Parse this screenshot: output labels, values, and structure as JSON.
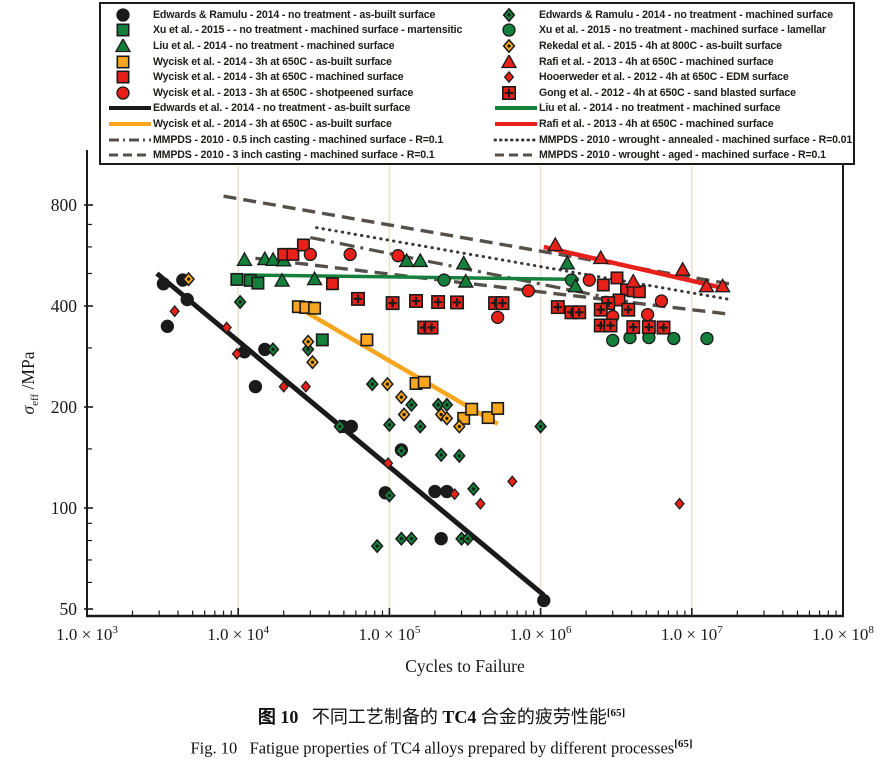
{
  "colors": {
    "black": "#1a1a1a",
    "green": "#15803C",
    "orange": "#F6A61F",
    "red": "#E7211A",
    "gray": "#56504A",
    "dot_gray": "#3a3a3a",
    "grid": "#EAE2CF",
    "axis": "#1a1a1a"
  },
  "legend": {
    "columns": [
      {
        "items": [
          {
            "marker": "circle",
            "color": "black",
            "label": "Edwards & Ramulu - 2014 - no treatment - as-built surface"
          },
          {
            "marker": "square",
            "color": "green",
            "label": "Xu et al. - 2015 - - no treatment - machined surface - martensitic"
          },
          {
            "marker": "triangle",
            "color": "green",
            "label": "Liu et al. - 2014 - no treatment - machined surface"
          },
          {
            "marker": "square",
            "color": "orange",
            "label": "Wycisk et al. - 2014 - 3h at 650C - as-built surface"
          },
          {
            "marker": "square",
            "color": "red",
            "label": "Wycisk et al. - 2014 - 3h at 650C - machined surface"
          },
          {
            "marker": "circle",
            "color": "red",
            "label": "Wycisk et al. - 2013 - 3h at 650C - shotpeened surface"
          },
          {
            "marker": "line",
            "dash": "solid",
            "color": "black",
            "label": "Edwards et al. - 2014 - no treatment - as-built surface"
          },
          {
            "marker": "line",
            "dash": "solid",
            "color": "orange",
            "label": "Wycisk  et al. -  2014 - 3h at 650C - as-built surface"
          },
          {
            "marker": "line",
            "dash": "dashdot",
            "color": "gray",
            "label": "MMPDS - 2010 - 0.5 inch casting - machined surface - R=0.1"
          },
          {
            "marker": "line",
            "dash": "dash",
            "color": "gray",
            "label": "MMPDS - 2010 - 3 inch casting - machined surface - R=0.1"
          }
        ]
      },
      {
        "items": [
          {
            "marker": "diamond",
            "color": "green",
            "label": "Edwards & Ramulu - 2014 - no treatment - machined surface"
          },
          {
            "marker": "circle",
            "color": "green",
            "label": "Xu et al. - 2015 - no treatment - machined surface - lamellar"
          },
          {
            "marker": "diamond",
            "color": "orange",
            "label": "Rekedal et al.  - 2015 - 4h at 800C - as-built surface"
          },
          {
            "marker": "triangle",
            "color": "red",
            "label": "Rafi et al. - 2013 - 4h at 650C - machined surface"
          },
          {
            "marker": "diamond-sm",
            "color": "red",
            "label": "Hooerweder et al. - 2012 - 4h at 650C - EDM surface"
          },
          {
            "marker": "plus-square",
            "color": "red",
            "label": "Gong et al. - 2012 - 4h at 650C - sand blasted surface"
          },
          {
            "marker": "line",
            "dash": "solid",
            "color": "green",
            "label": "Liu et al. - 2014 - no treatment - machined surface"
          },
          {
            "marker": "line",
            "dash": "solid",
            "color": "red",
            "label": "Rafi et al. - 2013 - 4h at 650C - machined surface"
          },
          {
            "marker": "line",
            "dash": "dot",
            "color": "dot_gray",
            "label": "MMPDS - 2010 - wrought - annealed - machined surface - R=0.01"
          },
          {
            "marker": "line",
            "dash": "dash",
            "color": "gray",
            "label": "MMPDS - 2010 - wrought - aged - machined surface - R=0.1"
          }
        ]
      }
    ]
  },
  "chart_data": {
    "type": "scatter",
    "title": "",
    "xlabel": "Cycles to Failure",
    "ylabel_sigma": "σ",
    "ylabel_sub": "eff",
    "ylabel_unit": " /MPa",
    "x_scale": "log",
    "y_scale": "log",
    "xlim": [
      1000,
      100000000
    ],
    "ylim": [
      47,
      1050
    ],
    "x_tick_mantissa": "1.0 × 10",
    "x_tick_exponents": [
      3,
      4,
      5,
      6,
      7,
      8
    ],
    "y_ticks": [
      50,
      100,
      200,
      400,
      800
    ],
    "y_minor_ticks": [
      60,
      70,
      80,
      90,
      150,
      300,
      500,
      600,
      700
    ],
    "gridlines_x": [
      10000,
      100000,
      1000000,
      10000000
    ],
    "legend_position": "top",
    "grid": "vertical-only",
    "series": [
      {
        "name": "edwards-asbuilt-points",
        "marker": "circle",
        "color": "black",
        "points": [
          [
            3200,
            466
          ],
          [
            4300,
            478
          ],
          [
            4600,
            418
          ],
          [
            3400,
            348
          ],
          [
            11000,
            292
          ],
          [
            15000,
            297
          ],
          [
            13000,
            230
          ],
          [
            49000,
            175
          ],
          [
            56000,
            175
          ],
          [
            94000,
            111
          ],
          [
            120000,
            149
          ],
          [
            200000,
            112
          ],
          [
            240000,
            112
          ],
          [
            220000,
            81
          ],
          [
            1050000,
            53
          ]
        ]
      },
      {
        "name": "edwards-machined-points",
        "marker": "diamond",
        "color": "green",
        "points": [
          [
            10300,
            411
          ],
          [
            17000,
            297
          ],
          [
            29000,
            297
          ],
          [
            47000,
            175
          ],
          [
            77000,
            234
          ],
          [
            100000,
            177
          ],
          [
            120000,
            148
          ],
          [
            140000,
            203
          ],
          [
            210000,
            203
          ],
          [
            240000,
            203
          ],
          [
            160000,
            175
          ],
          [
            220000,
            144
          ],
          [
            290000,
            143
          ],
          [
            360000,
            114
          ],
          [
            100000,
            109
          ],
          [
            83000,
            77
          ],
          [
            120000,
            81
          ],
          [
            140000,
            81
          ],
          [
            300000,
            81
          ],
          [
            330000,
            81
          ],
          [
            1000000,
            175
          ]
        ]
      },
      {
        "name": "xu-martensitic-points",
        "marker": "square",
        "color": "green",
        "points": [
          [
            9800,
            480
          ],
          [
            12000,
            477
          ],
          [
            13500,
            468
          ],
          [
            36000,
            317
          ]
        ]
      },
      {
        "name": "xu-lamellar-points",
        "marker": "circle",
        "color": "green",
        "points": [
          [
            230000,
            478
          ],
          [
            1600000,
            478
          ],
          [
            3000000,
            316
          ],
          [
            3900000,
            322
          ],
          [
            5200000,
            322
          ],
          [
            7600000,
            320
          ],
          [
            12600000,
            320
          ]
        ]
      },
      {
        "name": "liu-points",
        "marker": "triangle",
        "color": "green",
        "points": [
          [
            11000,
            549
          ],
          [
            15000,
            552
          ],
          [
            17000,
            549
          ],
          [
            20000,
            547
          ],
          [
            19500,
            476
          ],
          [
            32000,
            481
          ],
          [
            130000,
            545
          ],
          [
            160000,
            545
          ],
          [
            310000,
            536
          ],
          [
            1500000,
            536
          ],
          [
            320000,
            473
          ],
          [
            1700000,
            458
          ]
        ]
      },
      {
        "name": "wycisk-asbuilt-points",
        "marker": "square",
        "color": "orange",
        "points": [
          [
            25000,
            398
          ],
          [
            28000,
            396
          ],
          [
            32000,
            394
          ],
          [
            71000,
            317
          ],
          [
            150000,
            235
          ],
          [
            170000,
            237
          ],
          [
            310000,
            185
          ],
          [
            350000,
            197
          ],
          [
            450000,
            186
          ],
          [
            520000,
            198
          ]
        ]
      },
      {
        "name": "wycisk-machined-points",
        "marker": "square",
        "color": "red",
        "points": [
          [
            20000,
            570
          ],
          [
            23000,
            570
          ],
          [
            27000,
            608
          ],
          [
            42000,
            466
          ],
          [
            2600000,
            462
          ],
          [
            3200000,
            485
          ],
          [
            3700000,
            447
          ],
          [
            4100000,
            444
          ],
          [
            3300000,
            417
          ],
          [
            4500000,
            441
          ]
        ]
      },
      {
        "name": "wycisk-shotpeened-points",
        "marker": "circle",
        "color": "red",
        "points": [
          [
            30000,
            570
          ],
          [
            55000,
            570
          ],
          [
            114000,
            565
          ],
          [
            520000,
            370
          ],
          [
            830000,
            444
          ],
          [
            2100000,
            478
          ],
          [
            3000000,
            372
          ],
          [
            5100000,
            377
          ],
          [
            6300000,
            414
          ]
        ]
      },
      {
        "name": "rekedal-points",
        "marker": "diamond",
        "color": "orange",
        "points": [
          [
            4700,
            481
          ],
          [
            29000,
            313
          ],
          [
            31000,
            272
          ],
          [
            97000,
            234
          ],
          [
            120000,
            214
          ],
          [
            125000,
            190
          ],
          [
            220000,
            190
          ],
          [
            240000,
            185
          ],
          [
            290000,
            175
          ]
        ]
      },
      {
        "name": "rafi-points",
        "marker": "triangle",
        "color": "red",
        "points": [
          [
            1250000,
            608
          ],
          [
            2500000,
            556
          ],
          [
            4100000,
            473
          ],
          [
            8700000,
            513
          ],
          [
            12500000,
            458
          ],
          [
            16000000,
            458
          ]
        ]
      },
      {
        "name": "hooerweder-points",
        "marker": "diamond-sm",
        "color": "red",
        "points": [
          [
            3800,
            386
          ],
          [
            8400,
            345
          ],
          [
            9800,
            288
          ],
          [
            20000,
            230
          ],
          [
            28000,
            230
          ],
          [
            98000,
            136
          ],
          [
            270000,
            110
          ],
          [
            400000,
            103
          ],
          [
            650000,
            120
          ],
          [
            8300000,
            103
          ]
        ]
      },
      {
        "name": "gong-points",
        "marker": "plus-square",
        "color": "red",
        "points": [
          [
            62000,
            420
          ],
          [
            105000,
            408
          ],
          [
            150000,
            414
          ],
          [
            210000,
            411
          ],
          [
            280000,
            410
          ],
          [
            500000,
            408
          ],
          [
            560000,
            408
          ],
          [
            170000,
            345
          ],
          [
            190000,
            345
          ],
          [
            1300000,
            397
          ],
          [
            1600000,
            383
          ],
          [
            1800000,
            383
          ],
          [
            2800000,
            408
          ],
          [
            2500000,
            390
          ],
          [
            3800000,
            390
          ],
          [
            2500000,
            350
          ],
          [
            2900000,
            350
          ],
          [
            4100000,
            346
          ],
          [
            5200000,
            346
          ],
          [
            6500000,
            345
          ]
        ]
      }
    ],
    "lines": [
      {
        "name": "mmpds-wrought-aged-line",
        "dash": "dash",
        "color": "gray",
        "width": 3.4,
        "points": [
          [
            8000,
            850
          ],
          [
            18000000,
            465
          ]
        ]
      },
      {
        "name": "mmpds-wrought-annealed-line",
        "dash": "dot",
        "color": "dot_gray",
        "width": 3.0,
        "points": [
          [
            33000,
            685
          ],
          [
            18000000,
            418
          ]
        ]
      },
      {
        "name": "mmpds-05inch-casting-line",
        "dash": "dashdot",
        "color": "gray",
        "width": 3.2,
        "points": [
          [
            30000,
            640
          ],
          [
            4000000,
            410
          ]
        ]
      },
      {
        "name": "mmpds-3inch-casting-line",
        "dash": "dash",
        "color": "gray",
        "width": 3.4,
        "points": [
          [
            13000,
            555
          ],
          [
            18000000,
            378
          ]
        ]
      },
      {
        "name": "edwards-fit-line",
        "dash": "solid",
        "color": "black",
        "width": 5.0,
        "points": [
          [
            2900,
            500
          ],
          [
            1050000,
            55
          ]
        ]
      },
      {
        "name": "wycisk-fit-line",
        "dash": "solid",
        "color": "orange",
        "width": 4.5,
        "points": [
          [
            24000,
            400
          ],
          [
            520000,
            178
          ]
        ]
      },
      {
        "name": "liu-fit-line",
        "dash": "solid",
        "color": "green",
        "width": 3.5,
        "points": [
          [
            11000,
            495
          ],
          [
            1800000,
            480
          ]
        ]
      },
      {
        "name": "rafi-fit-line",
        "dash": "solid",
        "color": "red",
        "width": 4.5,
        "points": [
          [
            1050000,
            600
          ],
          [
            17000000,
            450
          ]
        ]
      }
    ]
  },
  "caption": {
    "zh": {
      "fig": "图 10",
      "text1": "不同工艺制备的 ",
      "alloy": "TC4",
      "text2": " 合金的疲劳性能",
      "ref": "[65]"
    },
    "en": {
      "fig": "Fig. 10",
      "text": "Fatigue properties of TC4 alloys prepared by different processes",
      "ref": "[65]"
    }
  }
}
